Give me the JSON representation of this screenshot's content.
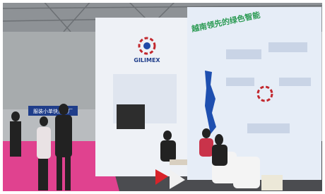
{
  "booth": {
    "logo": "GILIMEX",
    "headline": "越南领先的绿色智能",
    "banner": "服装小单快反工厂"
  }
}
